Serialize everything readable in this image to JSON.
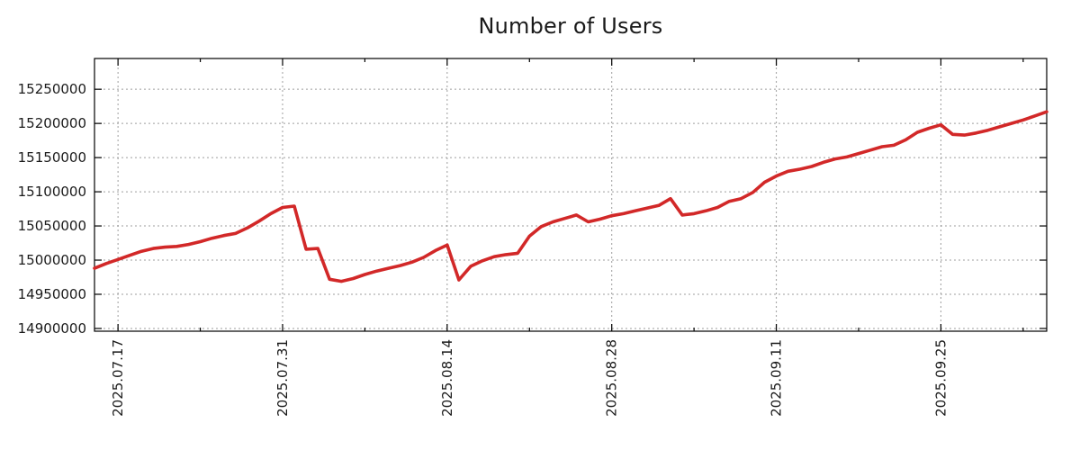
{
  "chart_data": {
    "type": "line",
    "title": "Number of Users",
    "xlabel": "",
    "ylabel": "",
    "grid": true,
    "legend": false,
    "line_color": "#d22828",
    "axis_color": "#000000",
    "grid_color": "#9e9e9e",
    "tick_label_color": "#1a1a1a",
    "ylim": [
      14896000,
      15295000
    ],
    "yticks": [
      14900000,
      14950000,
      15000000,
      15050000,
      15100000,
      15150000,
      15200000,
      15250000
    ],
    "xticks_major": [
      {
        "label": "2025.07.17",
        "index": 2
      },
      {
        "label": "2025.07.31",
        "index": 16
      },
      {
        "label": "2025.08.14",
        "index": 30
      },
      {
        "label": "2025.08.28",
        "index": 44
      },
      {
        "label": "2025.09.11",
        "index": 58
      },
      {
        "label": "2025.09.25",
        "index": 72
      }
    ],
    "xticks_minor_indices": [
      9,
      23,
      37,
      51,
      65,
      79
    ],
    "x": [
      "2025.07.15",
      "2025.07.16",
      "2025.07.17",
      "2025.07.18",
      "2025.07.19",
      "2025.07.20",
      "2025.07.21",
      "2025.07.22",
      "2025.07.23",
      "2025.07.24",
      "2025.07.25",
      "2025.07.26",
      "2025.07.27",
      "2025.07.28",
      "2025.07.29",
      "2025.07.30",
      "2025.07.31",
      "2025.08.01",
      "2025.08.02",
      "2025.08.03",
      "2025.08.04",
      "2025.08.05",
      "2025.08.06",
      "2025.08.07",
      "2025.08.08",
      "2025.08.09",
      "2025.08.10",
      "2025.08.11",
      "2025.08.12",
      "2025.08.13",
      "2025.08.14",
      "2025.08.15",
      "2025.08.16",
      "2025.08.17",
      "2025.08.18",
      "2025.08.19",
      "2025.08.20",
      "2025.08.21",
      "2025.08.22",
      "2025.08.23",
      "2025.08.24",
      "2025.08.25",
      "2025.08.26",
      "2025.08.27",
      "2025.08.28",
      "2025.08.29",
      "2025.08.30",
      "2025.08.31",
      "2025.09.01",
      "2025.09.02",
      "2025.09.03",
      "2025.09.04",
      "2025.09.05",
      "2025.09.06",
      "2025.09.07",
      "2025.09.08",
      "2025.09.09",
      "2025.09.10",
      "2025.09.11",
      "2025.09.12",
      "2025.09.13",
      "2025.09.14",
      "2025.09.15",
      "2025.09.16",
      "2025.09.17",
      "2025.09.18",
      "2025.09.19",
      "2025.09.20",
      "2025.09.21",
      "2025.09.22",
      "2025.09.23",
      "2025.09.24",
      "2025.09.25",
      "2025.09.26",
      "2025.09.27",
      "2025.09.28",
      "2025.09.29",
      "2025.09.30",
      "2025.10.01",
      "2025.10.02",
      "2025.10.03",
      "2025.10.04"
    ],
    "values": [
      14988000,
      14995000,
      15001000,
      15007000,
      15013000,
      15017000,
      15019000,
      15020000,
      15023000,
      15027000,
      15032000,
      15036000,
      15039000,
      15047000,
      15057000,
      15068000,
      15077000,
      15079000,
      15016000,
      15017000,
      14972000,
      14969000,
      14973000,
      14979000,
      14984000,
      14988000,
      14992000,
      14997000,
      15004000,
      15014000,
      15022000,
      14971000,
      14991000,
      14999000,
      15005000,
      15008000,
      15010000,
      15035000,
      15049000,
      15056000,
      15061000,
      15066000,
      15056000,
      15060000,
      15065000,
      15068000,
      15072000,
      15076000,
      15080000,
      15090000,
      15066000,
      15068000,
      15072000,
      15077000,
      15086000,
      15090000,
      15099000,
      15114000,
      15123000,
      15130000,
      15133000,
      15137000,
      15143000,
      15148000,
      15151000,
      15156000,
      15161000,
      15166000,
      15168000,
      15176000,
      15187000,
      15193000,
      15198000,
      15184000,
      15183000,
      15186000,
      15190000,
      15195000,
      15200000,
      15205000,
      15211000,
      15217000
    ]
  }
}
